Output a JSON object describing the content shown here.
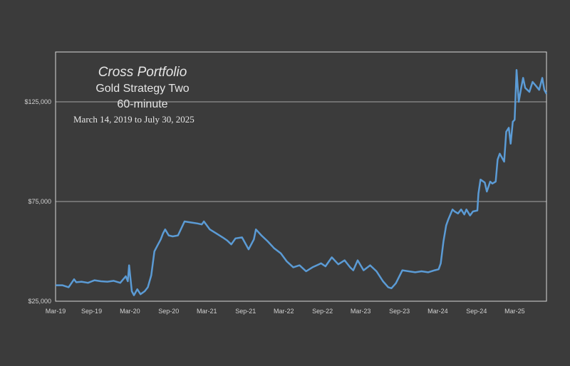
{
  "colors": {
    "background": "#3b3b3b",
    "plot_border": "#d9d9d9",
    "gridline": "#a6a6a6",
    "line": "#5b9bd5",
    "text": "#e6e6e6",
    "tick_text": "#d0d0d0"
  },
  "chart_data": {
    "type": "line",
    "title": "Cross Portfolio",
    "subtitle_lines": [
      "Gold Strategy Two",
      "60-minute"
    ],
    "date_range_text": "March 14,  2019 to July 30, 2025",
    "xlabel": "",
    "ylabel": "",
    "x_ticks": [
      "Mar-19",
      "Sep-19",
      "Mar-20",
      "Sep-20",
      "Mar-21",
      "Sep-21",
      "Mar-22",
      "Sep-22",
      "Mar-23",
      "Sep-23",
      "Mar-24",
      "Sep-24",
      "Mar-25"
    ],
    "y_ticks": [
      "$25,000",
      "$75,000",
      "$125,000"
    ],
    "y_tick_values": [
      25000,
      75000,
      125000
    ],
    "ylim": [
      25000,
      150000
    ],
    "xlim": [
      "2019-03-14",
      "2025-07-30"
    ],
    "grid": "horizontal",
    "series": [
      {
        "x": [
          "2019-03-14",
          "2019-04-15",
          "2019-05-15",
          "2019-06-10",
          "2019-06-20",
          "2019-07-15",
          "2019-08-15",
          "2019-09-15",
          "2019-10-15",
          "2019-11-15",
          "2019-12-15",
          "2020-01-15",
          "2020-02-10",
          "2020-02-20",
          "2020-02-26",
          "2020-03-10",
          "2020-03-20",
          "2020-04-05",
          "2020-04-20",
          "2020-05-10",
          "2020-05-25",
          "2020-06-10",
          "2020-06-25",
          "2020-07-10",
          "2020-07-25",
          "2020-08-05",
          "2020-08-15",
          "2020-09-01",
          "2020-09-20",
          "2020-10-15",
          "2020-11-15",
          "2020-12-15",
          "2021-01-15",
          "2021-02-05",
          "2021-02-15",
          "2021-03-15",
          "2021-04-15",
          "2021-05-15",
          "2021-06-05",
          "2021-06-25",
          "2021-07-15",
          "2021-08-15",
          "2021-09-15",
          "2021-10-10",
          "2021-10-20",
          "2021-11-15",
          "2021-12-15",
          "2022-01-15",
          "2022-02-15",
          "2022-03-15",
          "2022-04-15",
          "2022-05-15",
          "2022-06-15",
          "2022-07-15",
          "2022-08-15",
          "2022-08-25",
          "2022-09-15",
          "2022-10-15",
          "2022-11-15",
          "2022-12-15",
          "2023-01-10",
          "2023-01-25",
          "2023-02-15",
          "2023-03-15",
          "2023-04-15",
          "2023-05-15",
          "2023-06-15",
          "2023-07-10",
          "2023-07-25",
          "2023-08-15",
          "2023-09-15",
          "2023-10-15",
          "2023-11-15",
          "2023-12-15",
          "2024-01-15",
          "2024-02-15",
          "2024-03-05",
          "2024-03-15",
          "2024-03-28",
          "2024-04-10",
          "2024-04-20",
          "2024-05-10",
          "2024-05-20",
          "2024-06-05",
          "2024-06-20",
          "2024-07-05",
          "2024-07-15",
          "2024-08-01",
          "2024-08-15",
          "2024-09-05",
          "2024-09-10",
          "2024-09-20",
          "2024-10-10",
          "2024-10-20",
          "2024-11-05",
          "2024-11-15",
          "2024-12-01",
          "2024-12-10",
          "2024-12-20",
          "2025-01-10",
          "2025-01-20",
          "2025-02-01",
          "2025-02-10",
          "2025-02-20",
          "2025-03-01",
          "2025-03-10",
          "2025-03-20",
          "2025-04-01",
          "2025-04-10",
          "2025-04-20",
          "2025-05-10",
          "2025-05-25",
          "2025-06-10",
          "2025-06-25",
          "2025-07-10",
          "2025-07-20",
          "2025-07-30"
        ],
        "y": [
          33000,
          33000,
          32000,
          36000,
          34500,
          34800,
          34200,
          35500,
          35000,
          34800,
          35200,
          34200,
          37500,
          35000,
          43000,
          30000,
          28000,
          31000,
          28500,
          30000,
          32000,
          38000,
          50000,
          53000,
          56000,
          59000,
          61000,
          58000,
          57500,
          58000,
          65000,
          64500,
          64000,
          63500,
          65000,
          61000,
          59000,
          57000,
          55500,
          53500,
          56500,
          57000,
          51000,
          56000,
          61000,
          58000,
          55000,
          51500,
          49000,
          45000,
          42000,
          43000,
          40000,
          42000,
          43500,
          44000,
          42500,
          47000,
          43500,
          45500,
          42000,
          40500,
          45500,
          40500,
          43000,
          40000,
          35000,
          32000,
          31500,
          34000,
          40500,
          40000,
          39500,
          40000,
          39500,
          40500,
          41000,
          44000,
          55000,
          63000,
          66000,
          71000,
          70000,
          69000,
          71000,
          68500,
          71000,
          68000,
          70000,
          70500,
          79000,
          86000,
          84500,
          80000,
          85000,
          84000,
          85000,
          96000,
          99000,
          95000,
          110000,
          112000,
          104000,
          115000,
          116000,
          141000,
          125000,
          132000,
          137000,
          132000,
          130000,
          135000,
          133000,
          131000,
          137000,
          131000,
          129000
        ]
      }
    ]
  }
}
